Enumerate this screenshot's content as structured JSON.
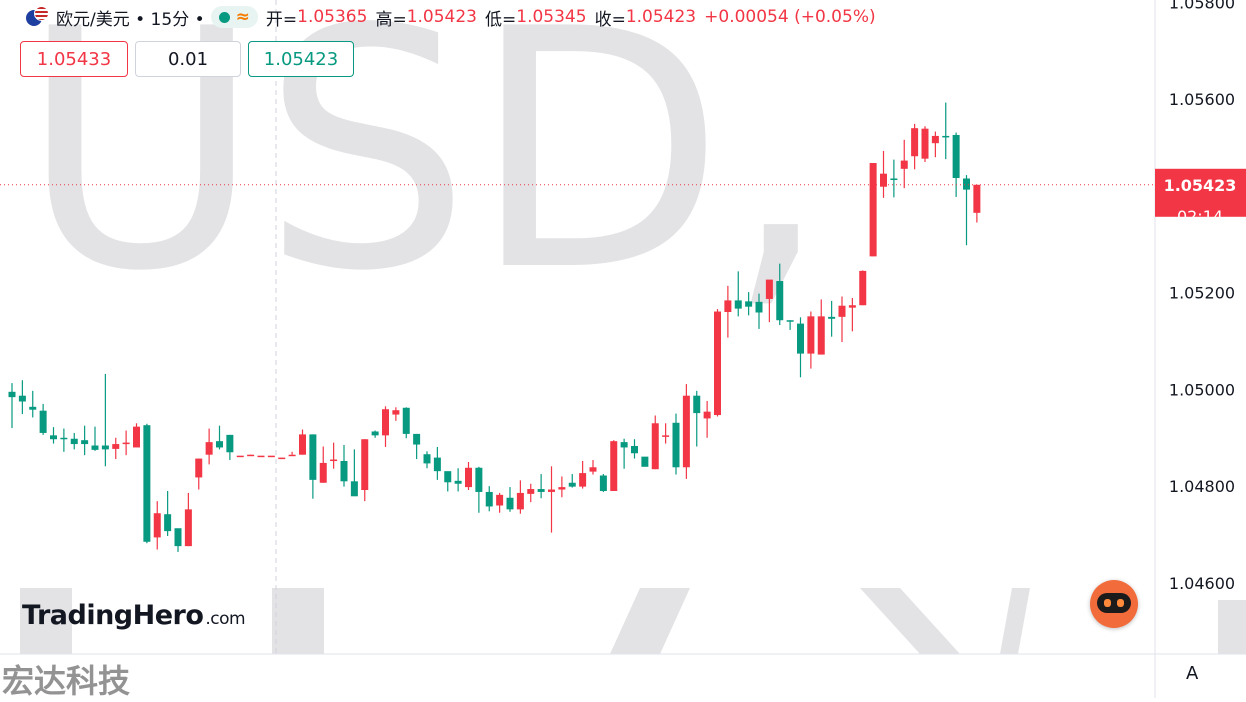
{
  "header": {
    "symbol": "欧元/美元 • 15分 •",
    "open_label": "开=",
    "open": "1.05365",
    "high_label": "高=",
    "high": "1.05423",
    "low_label": "低=",
    "low": "1.05345",
    "close_label": "收=",
    "close": "1.05423",
    "change": "+0.00054 (+0.05%)"
  },
  "trade": {
    "sell_price": "1.05433",
    "quantity": "0.01",
    "buy_price": "1.05423"
  },
  "price_tag": {
    "price": "1.05423",
    "countdown": "02:14"
  },
  "branding": {
    "logo_main": "TradingHero",
    "logo_suffix": ".com",
    "watermark": "宏达科技",
    "background_text": "USD,",
    "axis_mode": "A"
  },
  "colors": {
    "up": "#f23645",
    "down": "#089981",
    "grid": "#e0e3eb",
    "watermark": "#e3e3e6"
  },
  "chart_data": {
    "type": "candlestick",
    "interval": "15分",
    "ylim": [
      1.04453,
      1.05805
    ],
    "yticks": [
      1.046,
      1.048,
      1.05,
      1.052,
      1.054,
      1.056,
      1.058
    ],
    "ytick_labels": [
      "1.04600",
      "1.04800",
      "1.05000",
      "1.05200",
      "1.05400",
      "1.05600",
      "1.05800"
    ],
    "last_price": 1.05423,
    "candles": [
      [
        1.04995,
        1.04984,
        1.05013,
        1.0492
      ],
      [
        1.04987,
        1.04975,
        1.05019,
        1.04949
      ],
      [
        1.04964,
        1.04958,
        1.04997,
        1.04942
      ],
      [
        1.04956,
        1.0491,
        1.0497,
        1.04906
      ],
      [
        1.04905,
        1.04897,
        1.04922,
        1.04888
      ],
      [
        1.049,
        1.04897,
        1.04919,
        1.04871
      ],
      [
        1.04898,
        1.04887,
        1.0491,
        1.04876
      ],
      [
        1.04895,
        1.04887,
        1.04925,
        1.04864
      ],
      [
        1.04884,
        1.04875,
        1.04923,
        1.04873
      ],
      [
        1.04884,
        1.04876,
        1.05032,
        1.04841
      ],
      [
        1.04877,
        1.04887,
        1.049,
        1.04856
      ],
      [
        1.0489,
        1.0489,
        1.04915,
        1.04864
      ],
      [
        1.0488,
        1.04923,
        1.0493,
        1.0488
      ],
      [
        1.04926,
        1.04685,
        1.04929,
        1.04682
      ],
      [
        1.04694,
        1.04744,
        1.04769,
        1.04669
      ],
      [
        1.04742,
        1.04707,
        1.0479,
        1.04697
      ],
      [
        1.04713,
        1.04676,
        1.04704,
        1.04664
      ],
      [
        1.04676,
        1.04752,
        1.04786,
        1.04676
      ],
      [
        1.04818,
        1.04857,
        1.04857,
        1.04793
      ],
      [
        1.04865,
        1.04891,
        1.04919,
        1.04845
      ],
      [
        1.04893,
        1.0488,
        1.04925,
        1.04876
      ],
      [
        1.04906,
        1.0487,
        1.04906,
        1.04854
      ],
      [
        1.04863,
        1.04863,
        1.04863,
        1.04863
      ],
      [
        1.04863,
        1.04865,
        1.04865,
        1.04863
      ],
      [
        1.04863,
        1.04863,
        1.04863,
        1.04863
      ],
      [
        1.04863,
        1.04863,
        1.04863,
        1.04863
      ],
      [
        1.04859,
        1.04859,
        1.04859,
        1.04859
      ],
      [
        1.04863,
        1.04865,
        1.04871,
        1.04865
      ],
      [
        1.04865,
        1.04907,
        1.04917,
        1.04865
      ],
      [
        1.04907,
        1.04813,
        1.04907,
        1.04774
      ],
      [
        1.04807,
        1.04848,
        1.04882,
        1.04807
      ],
      [
        1.04852,
        1.04855,
        1.0489,
        1.04836
      ],
      [
        1.04852,
        1.0481,
        1.04885,
        1.04799
      ],
      [
        1.0481,
        1.04779,
        1.04876,
        1.04782
      ],
      [
        1.04792,
        1.04897,
        1.04897,
        1.04769
      ],
      [
        1.04913,
        1.04905,
        1.04915,
        1.049
      ],
      [
        1.04905,
        1.04959,
        1.04965,
        1.04881
      ],
      [
        1.04948,
        1.04957,
        1.04963,
        1.04935
      ],
      [
        1.04962,
        1.04908,
        1.04963,
        1.04899
      ],
      [
        1.04908,
        1.04886,
        1.04908,
        1.04856
      ],
      [
        1.04866,
        1.04847,
        1.04872,
        1.04837
      ],
      [
        1.04859,
        1.04831,
        1.04881,
        1.04813
      ],
      [
        1.04831,
        1.04808,
        1.0483,
        1.04789
      ],
      [
        1.04811,
        1.04805,
        1.04837,
        1.04789
      ],
      [
        1.04798,
        1.04838,
        1.0485,
        1.04792
      ],
      [
        1.04838,
        1.04788,
        1.0484,
        1.04745
      ],
      [
        1.04788,
        1.04758,
        1.048,
        1.04748
      ],
      [
        1.0476,
        1.04782,
        1.04786,
        1.04745
      ],
      [
        1.04776,
        1.04752,
        1.04798,
        1.04747
      ],
      [
        1.04752,
        1.04786,
        1.04812,
        1.04743
      ],
      [
        1.04784,
        1.04794,
        1.04805,
        1.04767
      ],
      [
        1.04794,
        1.04788,
        1.04825,
        1.04775
      ],
      [
        1.04788,
        1.04793,
        1.04841,
        1.04704
      ],
      [
        1.04793,
        1.04798,
        1.0482,
        1.04777
      ],
      [
        1.04807,
        1.04799,
        1.04825,
        1.04797
      ],
      [
        1.04799,
        1.04827,
        1.04852,
        1.04795
      ],
      [
        1.0483,
        1.04839,
        1.04854,
        1.04824
      ],
      [
        1.04822,
        1.0479,
        1.04825,
        1.04788
      ],
      [
        1.0479,
        1.04893,
        1.04895,
        1.0479
      ],
      [
        1.04891,
        1.0488,
        1.04898,
        1.04836
      ],
      [
        1.04883,
        1.04868,
        1.04897,
        1.04857
      ],
      [
        1.04861,
        1.0484,
        1.04855,
        1.04848
      ],
      [
        1.04835,
        1.0493,
        1.04946,
        1.04835
      ],
      [
        1.04905,
        1.04905,
        1.0493,
        1.04888
      ],
      [
        1.04931,
        1.04839,
        1.0495,
        1.04824
      ],
      [
        1.04839,
        1.04987,
        1.05011,
        1.04815
      ],
      [
        1.04987,
        1.04951,
        1.04997,
        1.04882
      ],
      [
        1.0494,
        1.04954,
        1.04976,
        1.049
      ],
      [
        1.04947,
        1.05161,
        1.05166,
        1.04944
      ],
      [
        1.0516,
        1.05184,
        1.05214,
        1.05107
      ],
      [
        1.05184,
        1.05167,
        1.05244,
        1.05151
      ],
      [
        1.05182,
        1.05171,
        1.05201,
        1.05153
      ],
      [
        1.05181,
        1.05159,
        1.05198,
        1.05125
      ],
      [
        1.05187,
        1.05227,
        1.05219,
        1.05139
      ],
      [
        1.05224,
        1.05143,
        1.0526,
        1.05133
      ],
      [
        1.05143,
        1.05142,
        1.05143,
        1.05123
      ],
      [
        1.05136,
        1.05074,
        1.05149,
        1.05025
      ],
      [
        1.05074,
        1.05151,
        1.05161,
        1.05043
      ],
      [
        1.05072,
        1.05151,
        1.05186,
        1.05072
      ],
      [
        1.0515,
        1.05146,
        1.05183,
        1.05109
      ],
      [
        1.0515,
        1.05173,
        1.05192,
        1.05098
      ],
      [
        1.05169,
        1.05174,
        1.05189,
        1.0512
      ],
      [
        1.05174,
        1.05245,
        1.05246,
        1.05174
      ],
      [
        1.05275,
        1.05468,
        1.05468,
        1.05275
      ],
      [
        1.05419,
        1.05446,
        1.05493,
        1.05396
      ],
      [
        1.05436,
        1.05434,
        1.05475,
        1.05397
      ],
      [
        1.05456,
        1.05473,
        1.05516,
        1.05416
      ],
      [
        1.05482,
        1.0554,
        1.05549,
        1.05455
      ],
      [
        1.05477,
        1.05539,
        1.05544,
        1.0547
      ],
      [
        1.05509,
        1.05524,
        1.05533,
        1.0548
      ],
      [
        1.05524,
        1.05522,
        1.05593,
        1.05476
      ],
      [
        1.05526,
        1.05437,
        1.05531,
        1.05398
      ],
      [
        1.05436,
        1.05413,
        1.05443,
        1.05298
      ],
      [
        1.05365,
        1.05423,
        1.05423,
        1.05345
      ]
    ]
  }
}
